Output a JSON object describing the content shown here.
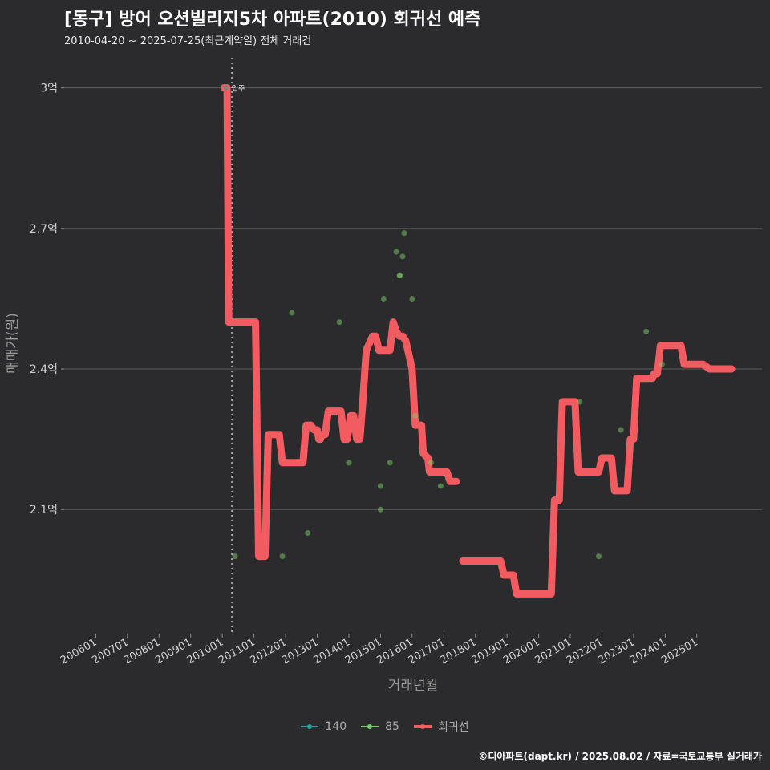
{
  "title": "[동구] 방어 오션빌리지5차 아파트(2010) 회귀선 예측",
  "subtitle": "2010-04-20 ~ 2025-07-25(최근계약일) 전체 거래건",
  "caption": "©디아파트(dapt.kr) / 2025.08.02 / 자료=국토교통부 실거래가",
  "colors": {
    "s140": "#2aa198",
    "s85": "#7ccd6a",
    "regression": "#f25c60"
  },
  "chart_data": {
    "type": "scatter",
    "xlabel": "거래년월",
    "ylabel": "매매가(원)",
    "xlim": [
      2005.0,
      2027.06
    ],
    "ylim": [
      1.835,
      3.085
    ],
    "x_ticks": [
      2006,
      2007,
      2008,
      2009,
      2010,
      2011,
      2012,
      2013,
      2014,
      2015,
      2016,
      2017,
      2018,
      2019,
      2020,
      2021,
      2022,
      2023,
      2024,
      2025
    ],
    "x_tick_labels": [
      "200601",
      "200701",
      "200801",
      "200901",
      "201001",
      "201101",
      "201201",
      "201301",
      "201401",
      "201501",
      "201601",
      "201701",
      "201801",
      "201901",
      "202001",
      "202101",
      "202201",
      "202301",
      "202401",
      "202501"
    ],
    "y_ticks": [
      2.1,
      2.4,
      2.7,
      3.0
    ],
    "y_tick_labels": [
      "2.1억",
      "2.4억",
      "2.7억",
      "3억"
    ],
    "annotation": {
      "x": 2010.3,
      "text": "입주"
    },
    "legend": [
      "140",
      "85",
      "회귀선"
    ],
    "series": [
      {
        "name": "140",
        "kind": "points",
        "x": [
          2010.1
        ],
        "y": [
          3.0
        ]
      },
      {
        "name": "85",
        "kind": "points",
        "x": [
          2010.4,
          2011.9,
          2012.2,
          2012.7,
          2013.7,
          2014.0,
          2015.0,
          2015.0,
          2015.1,
          2015.3,
          2015.5,
          2015.6,
          2015.62,
          2015.7,
          2015.75,
          2016.0,
          2016.1,
          2016.6,
          2016.9,
          2021.3,
          2021.9,
          2022.6,
          2023.4,
          2023.9
        ],
        "y": [
          2.0,
          2.0,
          2.52,
          2.05,
          2.5,
          2.2,
          2.1,
          2.15,
          2.55,
          2.2,
          2.65,
          2.6,
          2.6,
          2.64,
          2.69,
          2.55,
          2.3,
          2.2,
          2.15,
          2.33,
          2.0,
          2.27,
          2.48,
          2.41
        ]
      },
      {
        "name": "회귀선",
        "kind": "line",
        "segments": [
          [
            [
              2010.05,
              3.0
            ],
            [
              2010.15,
              3.0
            ],
            [
              2010.2,
              2.5
            ],
            [
              2011.05,
              2.5
            ],
            [
              2011.15,
              2.0
            ],
            [
              2011.35,
              2.0
            ],
            [
              2011.45,
              2.26
            ],
            [
              2011.8,
              2.26
            ],
            [
              2011.9,
              2.2
            ],
            [
              2012.55,
              2.2
            ],
            [
              2012.65,
              2.28
            ],
            [
              2012.8,
              2.28
            ],
            [
              2012.9,
              2.27
            ],
            [
              2013.0,
              2.27
            ],
            [
              2013.05,
              2.25
            ],
            [
              2013.1,
              2.25
            ],
            [
              2013.15,
              2.26
            ],
            [
              2013.25,
              2.26
            ],
            [
              2013.35,
              2.31
            ],
            [
              2013.75,
              2.31
            ],
            [
              2013.85,
              2.25
            ],
            [
              2013.95,
              2.25
            ],
            [
              2014.05,
              2.3
            ],
            [
              2014.15,
              2.3
            ],
            [
              2014.25,
              2.25
            ],
            [
              2014.35,
              2.25
            ],
            [
              2014.45,
              2.34
            ],
            [
              2014.55,
              2.44
            ],
            [
              2014.75,
              2.47
            ],
            [
              2014.85,
              2.47
            ],
            [
              2014.95,
              2.44
            ],
            [
              2015.3,
              2.44
            ],
            [
              2015.4,
              2.5
            ],
            [
              2015.5,
              2.48
            ],
            [
              2015.6,
              2.47
            ],
            [
              2015.7,
              2.47
            ],
            [
              2015.8,
              2.46
            ],
            [
              2016.0,
              2.4
            ],
            [
              2016.1,
              2.28
            ],
            [
              2016.3,
              2.28
            ],
            [
              2016.35,
              2.22
            ],
            [
              2016.5,
              2.21
            ],
            [
              2016.55,
              2.18
            ],
            [
              2017.1,
              2.18
            ],
            [
              2017.2,
              2.16
            ],
            [
              2017.4,
              2.16
            ]
          ],
          [
            [
              2017.6,
              1.99
            ],
            [
              2018.8,
              1.99
            ],
            [
              2018.9,
              1.96
            ],
            [
              2019.2,
              1.96
            ],
            [
              2019.3,
              1.92
            ],
            [
              2020.4,
              1.92
            ],
            [
              2020.5,
              2.12
            ],
            [
              2020.65,
              2.12
            ],
            [
              2020.75,
              2.33
            ],
            [
              2021.15,
              2.33
            ],
            [
              2021.25,
              2.18
            ],
            [
              2021.9,
              2.18
            ],
            [
              2022.0,
              2.21
            ],
            [
              2022.3,
              2.21
            ],
            [
              2022.4,
              2.14
            ],
            [
              2022.8,
              2.14
            ],
            [
              2022.9,
              2.25
            ],
            [
              2023.0,
              2.25
            ],
            [
              2023.1,
              2.38
            ],
            [
              2023.6,
              2.38
            ],
            [
              2023.65,
              2.39
            ],
            [
              2023.75,
              2.39
            ],
            [
              2023.85,
              2.45
            ],
            [
              2024.5,
              2.45
            ],
            [
              2024.6,
              2.41
            ],
            [
              2025.2,
              2.41
            ],
            [
              2025.4,
              2.4
            ],
            [
              2026.1,
              2.4
            ]
          ]
        ]
      }
    ]
  }
}
